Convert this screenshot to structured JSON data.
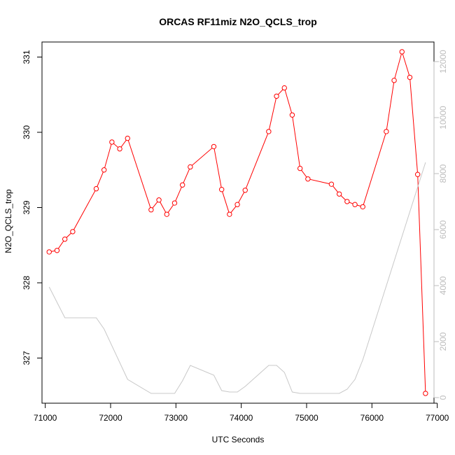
{
  "chart_data": {
    "type": "line",
    "title": "ORCAS RF11miz N2O_QCLS_trop",
    "xlabel": "UTC Seconds",
    "ylabel": "N2O_QCLS_trop",
    "xlim": [
      70950,
      76950
    ],
    "ylim": [
      326.4,
      331.2
    ],
    "y2lim": [
      -200,
      12700
    ],
    "x_ticks": [
      71000,
      72000,
      73000,
      74000,
      75000,
      76000,
      77000
    ],
    "x_tick_labels": [
      "71000",
      "72000",
      "73000",
      "74000",
      "75000",
      "76000",
      "77000"
    ],
    "y_ticks": [
      327,
      328,
      329,
      330,
      331
    ],
    "y_tick_labels": [
      "327",
      "328",
      "329",
      "330",
      "331"
    ],
    "y2_ticks": [
      0,
      2000,
      4000,
      6000,
      8000,
      10000,
      12000
    ],
    "y2_tick_labels": [
      "0",
      "2000",
      "4000",
      "6000",
      "8000",
      "10000",
      "12000"
    ],
    "series": [
      {
        "axis": "left",
        "color": "#ff0000",
        "style": "line+circles",
        "x": [
          71060,
          71180,
          71300,
          71420,
          71780,
          71900,
          72020,
          72140,
          72260,
          72620,
          72740,
          72860,
          72980,
          73100,
          73220,
          73580,
          73700,
          73820,
          73940,
          74060,
          74420,
          74540,
          74660,
          74780,
          74900,
          75020,
          75380,
          75500,
          75620,
          75740,
          75860,
          76220,
          76340,
          76460,
          76580,
          76700,
          76820
        ],
        "y": [
          328.41,
          328.43,
          328.58,
          328.68,
          329.25,
          329.5,
          329.87,
          329.78,
          329.92,
          328.97,
          329.1,
          328.91,
          329.06,
          329.3,
          329.54,
          329.81,
          329.24,
          328.91,
          329.04,
          329.23,
          330.01,
          330.48,
          330.59,
          330.23,
          329.52,
          329.38,
          329.31,
          329.18,
          329.08,
          329.04,
          329.01,
          330.01,
          330.69,
          331.07,
          330.73,
          329.44,
          326.53
        ]
      },
      {
        "axis": "right",
        "color": "#c8c8c8",
        "style": "line",
        "x": [
          71060,
          71300,
          71780,
          71900,
          72260,
          72620,
          72740,
          72980,
          73100,
          73220,
          73580,
          73700,
          73820,
          73940,
          74060,
          74420,
          74540,
          74660,
          74780,
          74900,
          75500,
          75620,
          75740,
          75860,
          76820
        ],
        "y": [
          3950,
          2850,
          2850,
          2450,
          650,
          150,
          150,
          150,
          600,
          1150,
          800,
          250,
          200,
          200,
          400,
          1150,
          1150,
          900,
          200,
          150,
          150,
          300,
          650,
          1350,
          8400
        ]
      }
    ]
  }
}
